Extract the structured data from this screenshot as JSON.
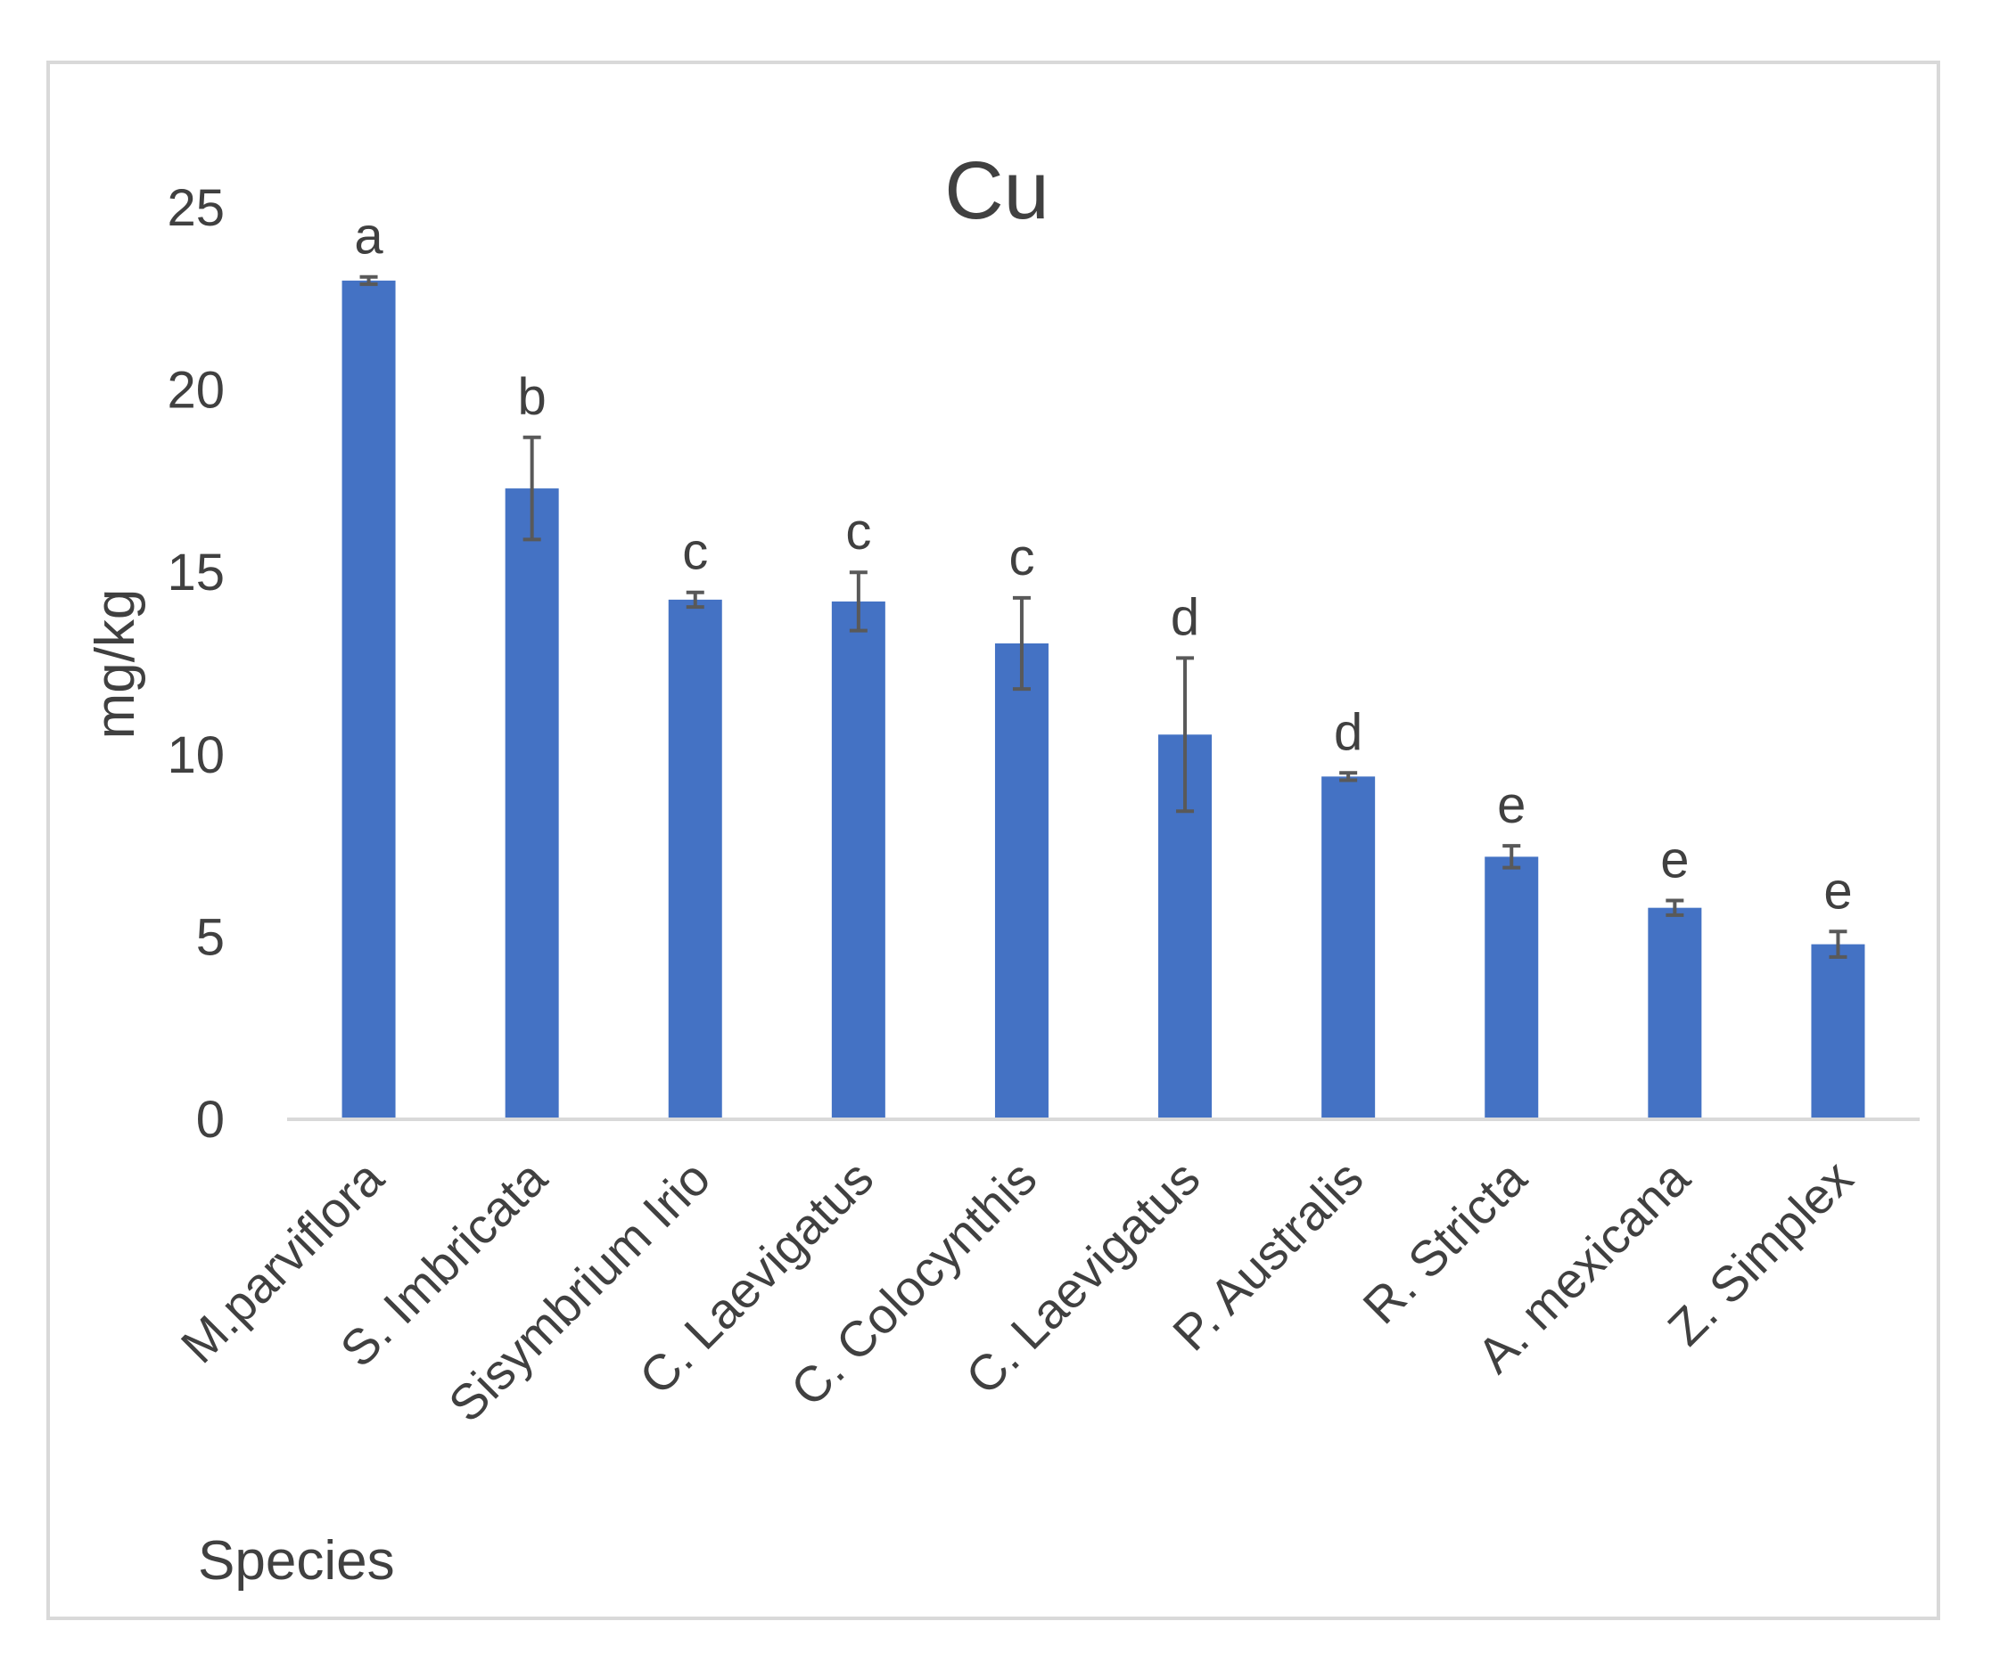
{
  "chart_data": {
    "type": "bar",
    "title": "Cu",
    "xlabel": "Species",
    "ylabel": "mg/kg",
    "ylim": [
      0,
      25
    ],
    "yticks": [
      0,
      5,
      10,
      15,
      20,
      25
    ],
    "grid": false,
    "legend": "none",
    "categories": [
      "M.parviflora",
      "S. Imbricata",
      "Sisymbrium Irio",
      "C. Laevigatus",
      "C. Colocynthis",
      "C. Laevigatus",
      "P. Australis",
      "R. Stricta",
      "A. mexicana",
      "Z. Simplex"
    ],
    "values": [
      23.0,
      17.3,
      14.25,
      14.2,
      13.05,
      10.55,
      9.4,
      7.2,
      5.8,
      4.8
    ],
    "errors": [
      0.1,
      1.4,
      0.2,
      0.8,
      1.25,
      2.1,
      0.1,
      0.3,
      0.2,
      0.35
    ],
    "significance": [
      "a",
      "b",
      "c",
      "c",
      "c",
      "d",
      "d",
      "e",
      "e",
      "e"
    ],
    "colors": {
      "bar": "#4472c4",
      "error_bar": "#595959",
      "axis": "#d9d9d9",
      "text": "#404040"
    }
  }
}
